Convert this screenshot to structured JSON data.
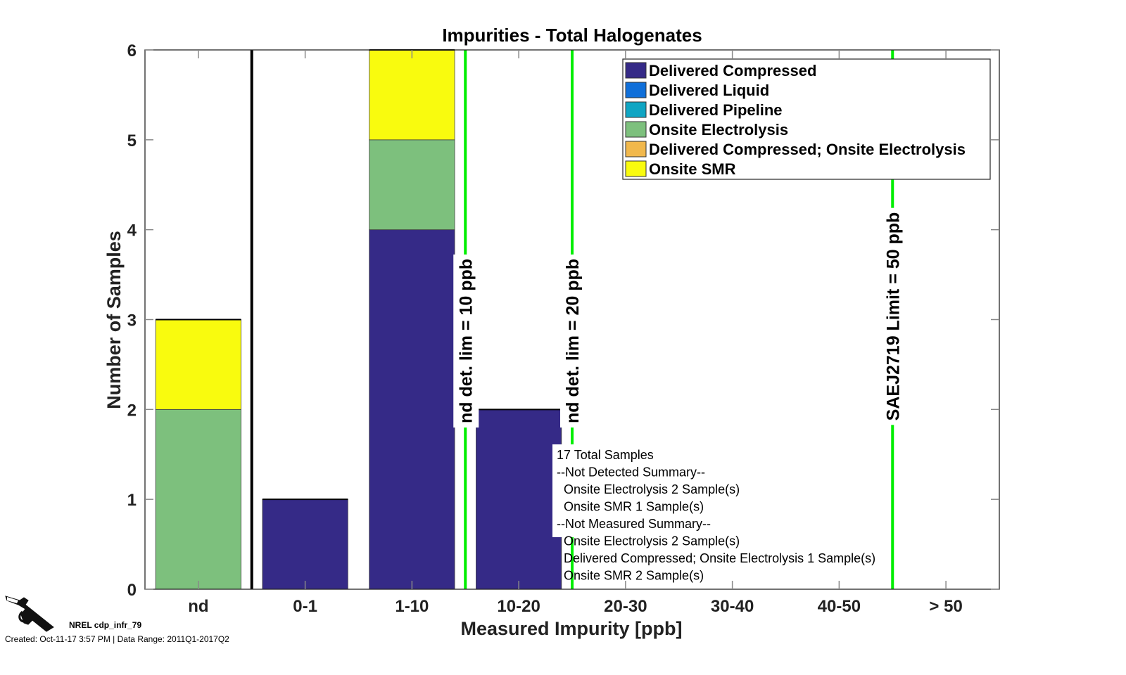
{
  "chart_data": {
    "type": "bar",
    "stacked": true,
    "title": "Impurities - Total Halogenates",
    "xlabel": "Measured Impurity [ppb]",
    "ylabel": "Number of Samples",
    "ylim": [
      0,
      6
    ],
    "yticks": [
      0,
      1,
      2,
      3,
      4,
      5,
      6
    ],
    "categories": [
      "nd",
      "0-1",
      "1-10",
      "10-20",
      "20-30",
      "30-40",
      "40-50",
      "> 50"
    ],
    "series": [
      {
        "name": "Delivered Compressed",
        "color": "#352A87",
        "values": [
          0,
          1,
          4,
          2,
          0,
          0,
          0,
          0
        ]
      },
      {
        "name": "Delivered Liquid",
        "color": "#0F6FD9",
        "values": [
          0,
          0,
          0,
          0,
          0,
          0,
          0,
          0
        ]
      },
      {
        "name": "Delivered Pipeline",
        "color": "#0FA5C3",
        "values": [
          0,
          0,
          0,
          0,
          0,
          0,
          0,
          0
        ]
      },
      {
        "name": "Onsite Electrolysis",
        "color": "#7DC07D",
        "values": [
          2,
          0,
          1,
          0,
          0,
          0,
          0,
          0
        ]
      },
      {
        "name": "Delivered Compressed; Onsite Electrolysis",
        "color": "#F1B84C",
        "values": [
          0,
          0,
          0,
          0,
          0,
          0,
          0,
          0
        ]
      },
      {
        "name": "Onsite SMR",
        "color": "#F9FB0E",
        "values": [
          1,
          0,
          1,
          0,
          0,
          0,
          0,
          0
        ]
      }
    ],
    "legend_position": "top-right",
    "separator_after_category": "nd",
    "reference_lines": [
      {
        "label": "nd det. lim = 10 ppb",
        "after_category_index": 2,
        "color": "#00EE00"
      },
      {
        "label": "nd det. lim = 20 ppb",
        "after_category_index": 3,
        "color": "#00EE00"
      },
      {
        "label": "SAEJ2719 Limit = 50 ppb",
        "after_category_index": 6,
        "color": "#00EE00"
      }
    ],
    "summary": {
      "lines": [
        "17 Total Samples",
        "--Not Detected Summary--",
        "  Onsite Electrolysis 2 Sample(s)",
        "  Onsite SMR 1 Sample(s)",
        "--Not Measured Summary--",
        "  Onsite Electrolysis 2 Sample(s)",
        "  Delivered Compressed; Onsite Electrolysis 1 Sample(s)",
        "  Onsite SMR 2 Sample(s)"
      ]
    }
  },
  "footer": {
    "id": "NREL cdp_infr_79",
    "created": "Created: Oct-11-17  3:57 PM | Data Range: 2011Q1-2017Q2",
    "logo_icon": "fuel-nozzle-icon"
  }
}
